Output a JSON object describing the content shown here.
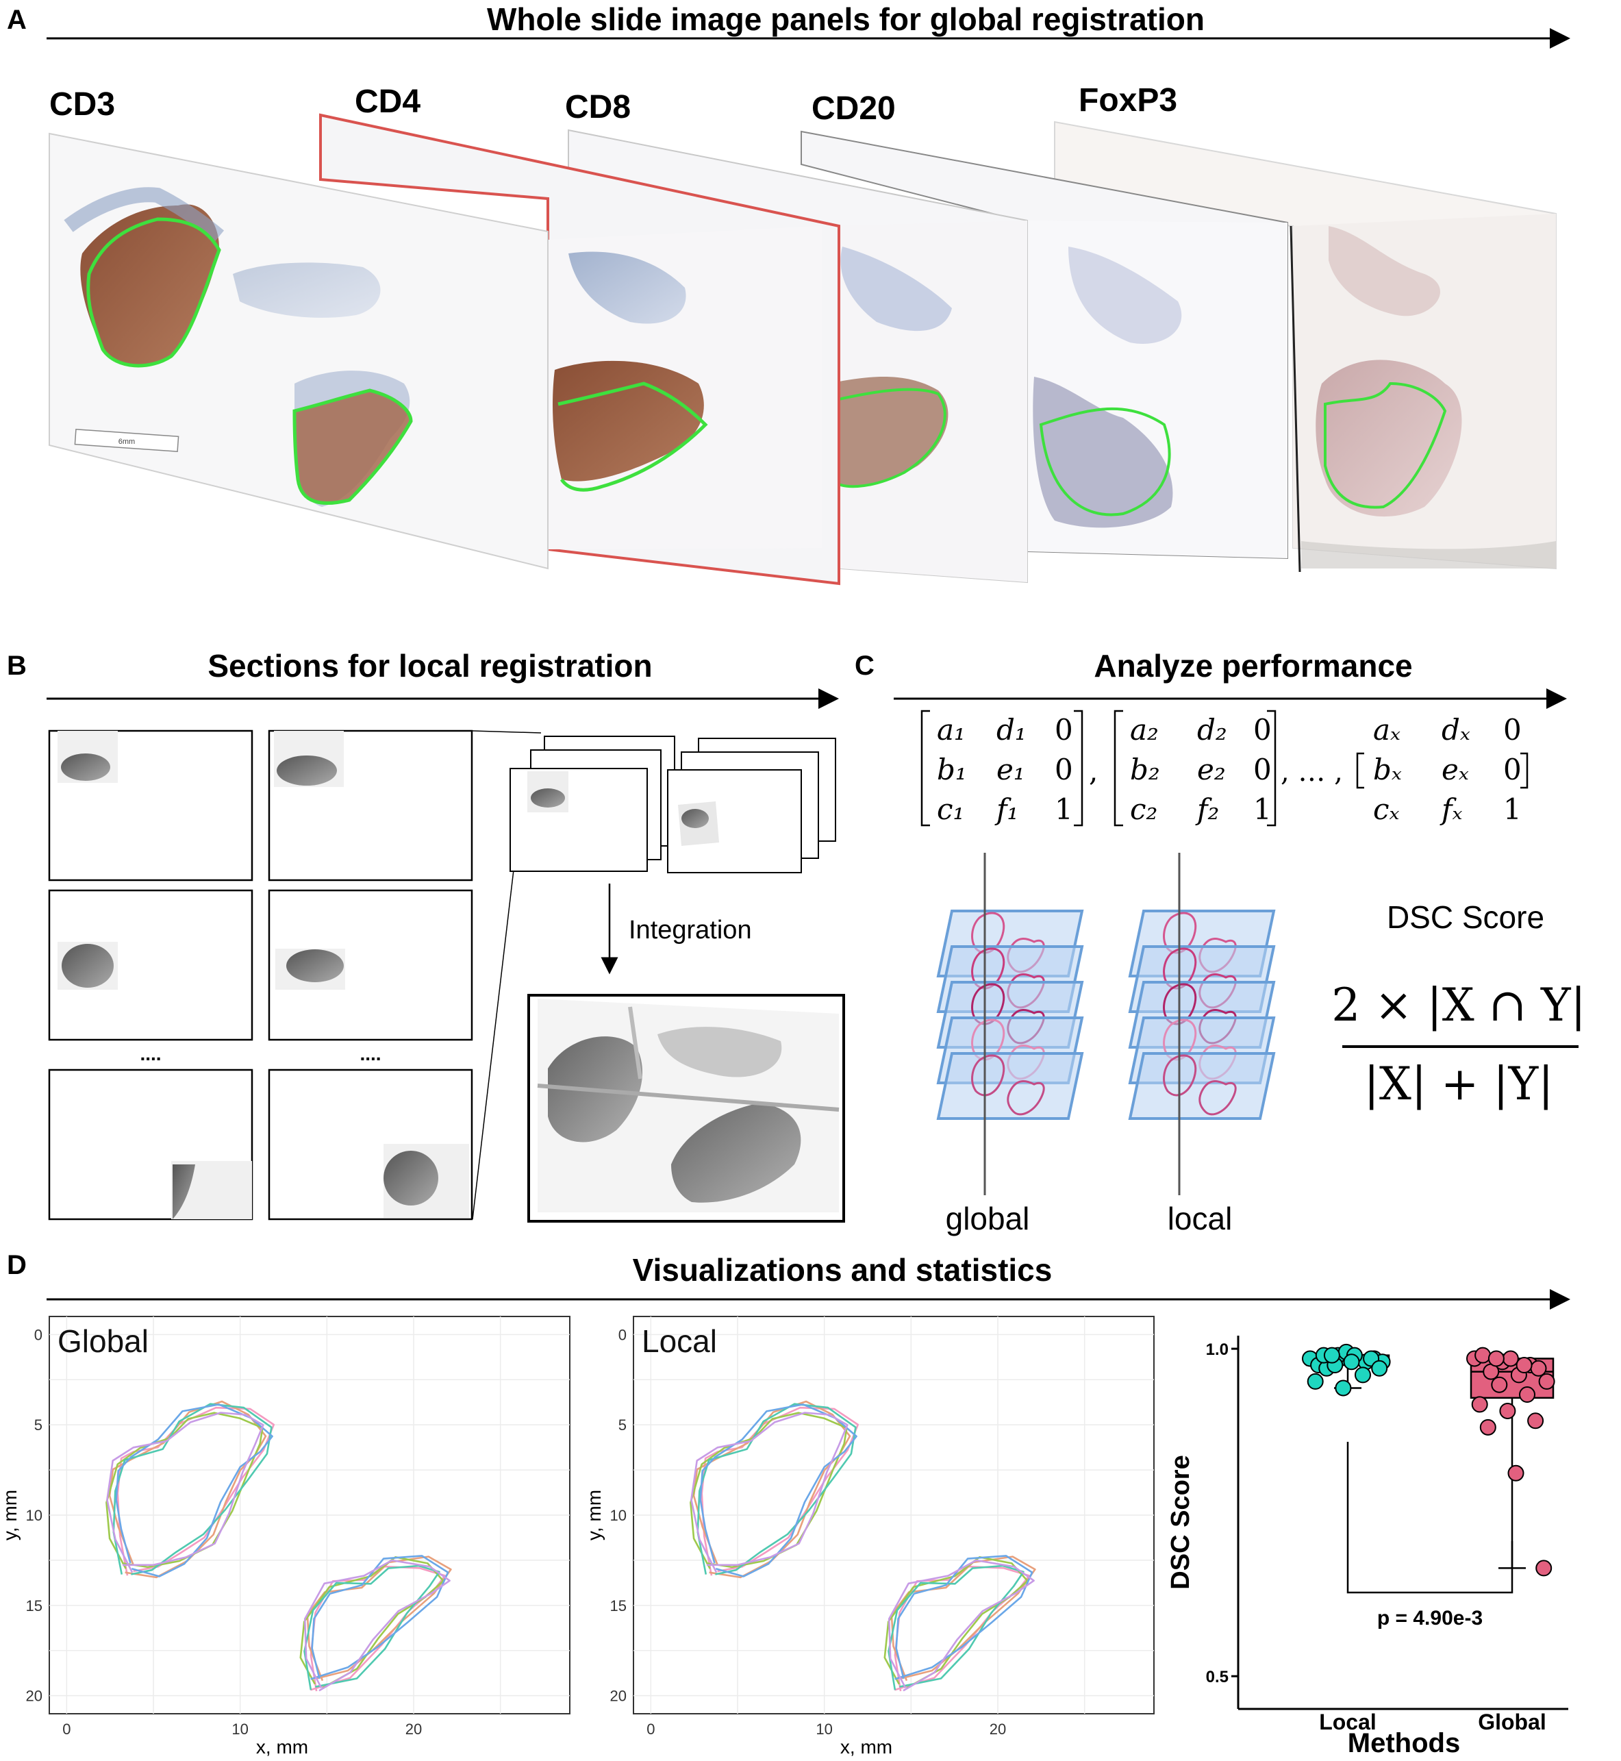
{
  "panels": {
    "A": {
      "letter": "A",
      "title": "Whole slide image panels for global registration",
      "slides": [
        {
          "label": "CD3"
        },
        {
          "label": "CD4"
        },
        {
          "label": "CD8"
        },
        {
          "label": "CD20"
        },
        {
          "label": "FoxP3"
        }
      ],
      "scalebar_text": "6mm"
    },
    "B": {
      "letter": "B",
      "title": "Sections for local registration",
      "ellipsis": "....",
      "integration_label": "Integration"
    },
    "C": {
      "letter": "C",
      "title": "Analyze performance",
      "matrices": [
        {
          "rows": [
            [
              "a₁",
              "d₁",
              "0"
            ],
            [
              "b₁",
              "e₁",
              "0"
            ],
            [
              "c₁",
              "f₁",
              "1"
            ]
          ]
        },
        {
          "rows": [
            [
              "a₂",
              "d₂",
              "0"
            ],
            [
              "b₂",
              "e₂",
              "0"
            ],
            [
              "c₂",
              "f₂",
              "1"
            ]
          ]
        },
        {
          "rows": [
            [
              "aₓ",
              "dₓ",
              "0"
            ],
            [
              "bₓ",
              "eₓ",
              "0"
            ],
            [
              "cₓ",
              "fₓ",
              "1"
            ]
          ]
        }
      ],
      "separator": ",",
      "ellipsis_sep": ", … ,",
      "stack_labels": {
        "global": "global",
        "local": "local"
      },
      "dsc_title": "DSC Score",
      "dsc_numerator": "2 × |X ∩ Y|",
      "dsc_denominator": "|X| + |Y|"
    },
    "D": {
      "letter": "D",
      "title": "Visualizations and statistics"
    }
  },
  "chart_data": [
    {
      "type": "line",
      "title": "Global",
      "xlabel": "x, mm",
      "ylabel": "y, mm",
      "xlim": [
        -1,
        29
      ],
      "ylim": [
        21,
        -1
      ],
      "x_ticks": [
        0,
        10,
        20
      ],
      "y_ticks": [
        0,
        5,
        10,
        15,
        20
      ],
      "series_colors": [
        "#f49ac0",
        "#e8a07c",
        "#9ec94c",
        "#4fc9b0",
        "#6aa7e8",
        "#c79be6"
      ],
      "shapes": [
        {
          "name": "large contour",
          "points": [
            [
              3.5,
              13
            ],
            [
              2.8,
              11
            ],
            [
              2.6,
              9
            ],
            [
              3,
              7.2
            ],
            [
              4,
              6.6
            ],
            [
              5.6,
              6
            ],
            [
              6.8,
              4.6
            ],
            [
              8.6,
              4
            ],
            [
              10.3,
              4.4
            ],
            [
              11.6,
              5.3
            ],
            [
              11.2,
              6.4
            ],
            [
              10.3,
              7.6
            ],
            [
              9.2,
              9.6
            ],
            [
              8.2,
              11.3
            ],
            [
              6.6,
              12.4
            ],
            [
              5,
              13.1
            ],
            [
              3.5,
              13
            ]
          ]
        },
        {
          "name": "small contour",
          "points": [
            [
              14.4,
              19.4
            ],
            [
              13.8,
              17.6
            ],
            [
              14,
              15.6
            ],
            [
              15.2,
              14
            ],
            [
              17.3,
              13.7
            ],
            [
              18.6,
              12.6
            ],
            [
              20.6,
              12.6
            ],
            [
              21.8,
              13.3
            ],
            [
              21,
              14.3
            ],
            [
              19.4,
              15.6
            ],
            [
              18,
              17.2
            ],
            [
              16.5,
              18.7
            ],
            [
              14.4,
              19.4
            ]
          ]
        }
      ]
    },
    {
      "type": "line",
      "title": "Local",
      "xlabel": "x, mm",
      "ylabel": "y, mm",
      "xlim": [
        -1,
        29
      ],
      "ylim": [
        21,
        -1
      ],
      "x_ticks": [
        0,
        10,
        20
      ],
      "y_ticks": [
        0,
        5,
        10,
        15,
        20
      ],
      "series_colors": [
        "#f49ac0",
        "#e8a07c",
        "#9ec94c",
        "#4fc9b0",
        "#6aa7e8",
        "#c79be6"
      ],
      "shapes": [
        {
          "name": "large contour",
          "points": [
            [
              3.5,
              13
            ],
            [
              2.8,
              11
            ],
            [
              2.6,
              9
            ],
            [
              3,
              7.2
            ],
            [
              4,
              6.6
            ],
            [
              5.6,
              6
            ],
            [
              6.8,
              4.6
            ],
            [
              8.6,
              4
            ],
            [
              10.3,
              4.4
            ],
            [
              11.6,
              5.3
            ],
            [
              11.2,
              6.4
            ],
            [
              10.3,
              7.6
            ],
            [
              9.2,
              9.6
            ],
            [
              8.2,
              11.3
            ],
            [
              6.6,
              12.4
            ],
            [
              5,
              13.1
            ],
            [
              3.5,
              13
            ]
          ]
        },
        {
          "name": "small contour",
          "points": [
            [
              14.4,
              19.4
            ],
            [
              13.8,
              17.6
            ],
            [
              14,
              15.6
            ],
            [
              15.2,
              14
            ],
            [
              17.3,
              13.7
            ],
            [
              18.6,
              12.6
            ],
            [
              20.6,
              12.6
            ],
            [
              21.8,
              13.3
            ],
            [
              21,
              14.3
            ],
            [
              19.4,
              15.6
            ],
            [
              18,
              17.2
            ],
            [
              16.5,
              18.7
            ],
            [
              14.4,
              19.4
            ]
          ]
        }
      ]
    },
    {
      "type": "box",
      "xlabel": "Methods",
      "ylabel": "DSC Score",
      "categories": [
        "Local",
        "Global"
      ],
      "ylim": [
        0.45,
        1.02
      ],
      "y_ticks": [
        0.5,
        1.0
      ],
      "y_tick_labels": [
        "0.5",
        "1.0"
      ],
      "series": [
        {
          "name": "Local",
          "color": "#1fd6c0",
          "box": {
            "q1": 0.975,
            "median": 0.985,
            "q3": 0.99,
            "whisker_low": 0.94,
            "whisker_high": 0.995
          },
          "points": [
            0.985,
            0.99,
            0.98,
            0.975,
            0.995,
            0.985,
            0.97,
            0.99,
            0.98,
            0.975,
            0.96,
            0.95,
            0.94,
            0.985,
            0.99,
            0.98,
            0.97,
            0.99
          ]
        },
        {
          "name": "Global",
          "color": "#e2607f",
          "box": {
            "q1": 0.925,
            "median": 0.965,
            "q3": 0.985,
            "whisker_low": 0.665,
            "whisker_high": 0.995
          },
          "points": [
            0.985,
            0.98,
            0.975,
            0.99,
            0.985,
            0.97,
            0.965,
            0.96,
            0.95,
            0.945,
            0.93,
            0.915,
            0.905,
            0.89,
            0.88,
            0.81,
            0.665,
            0.985,
            0.975
          ]
        }
      ],
      "annotation": "p = 4.90e-3"
    }
  ]
}
